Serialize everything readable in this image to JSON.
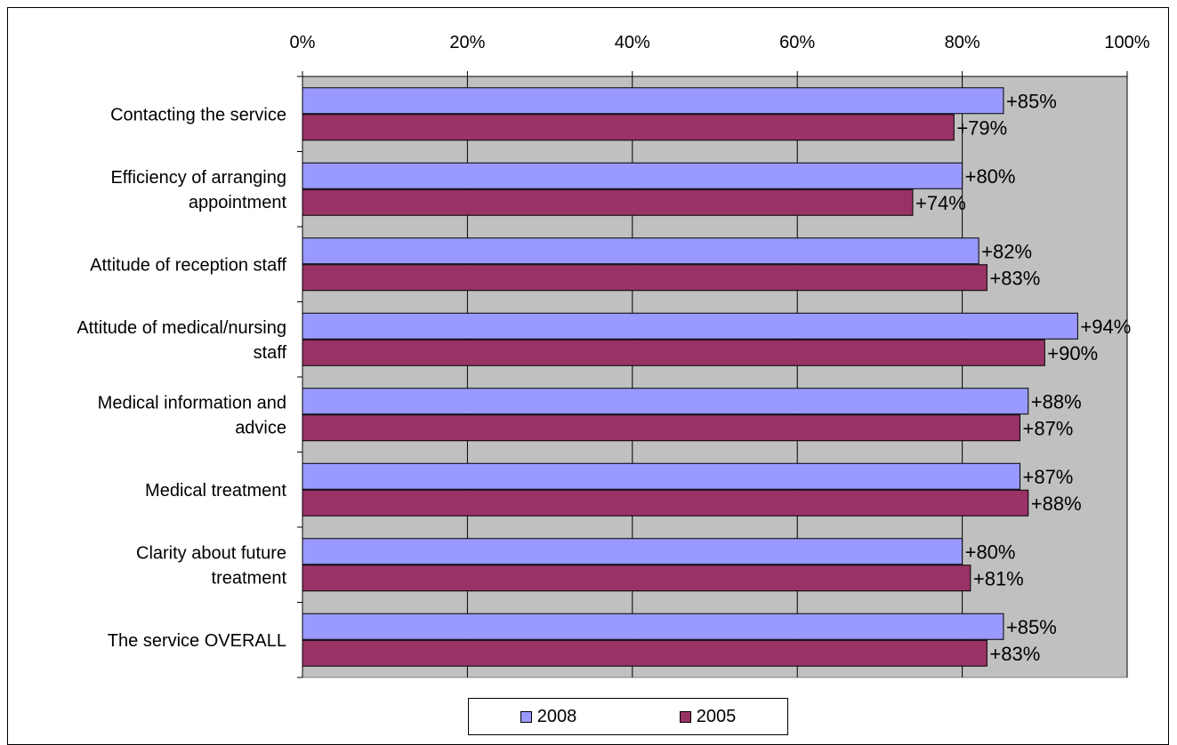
{
  "chart_data": {
    "type": "bar",
    "orientation": "horizontal",
    "categories": [
      [
        "Contacting the service"
      ],
      [
        "Efficiency of arranging",
        "appointment"
      ],
      [
        "Attitude of reception staff"
      ],
      [
        "Attitude of medical/nursing",
        "staff"
      ],
      [
        "Medical information and",
        "advice"
      ],
      [
        "Medical treatment"
      ],
      [
        "Clarity about future",
        "treatment"
      ],
      [
        "The service OVERALL"
      ]
    ],
    "series": [
      {
        "name": "2008",
        "color": "#9999ff",
        "values": [
          85,
          80,
          82,
          94,
          88,
          87,
          80,
          85
        ],
        "labels": [
          "+85%",
          "+80%",
          "+82%",
          "+94%",
          "+88%",
          "+87%",
          "+80%",
          "+85%"
        ]
      },
      {
        "name": "2005",
        "color": "#993366",
        "values": [
          79,
          74,
          83,
          90,
          87,
          88,
          81,
          83
        ],
        "labels": [
          "+79%",
          "+74%",
          "+83%",
          "+90%",
          "+87%",
          "+88%",
          "+81%",
          "+83%"
        ]
      }
    ],
    "x_ticks": [
      "0%",
      "20%",
      "40%",
      "60%",
      "80%",
      "100%"
    ],
    "xlim": [
      0,
      100
    ],
    "xaxis_position": "top",
    "plot_background": "#c0c0c0",
    "grid": true,
    "legend_position": "bottom"
  }
}
